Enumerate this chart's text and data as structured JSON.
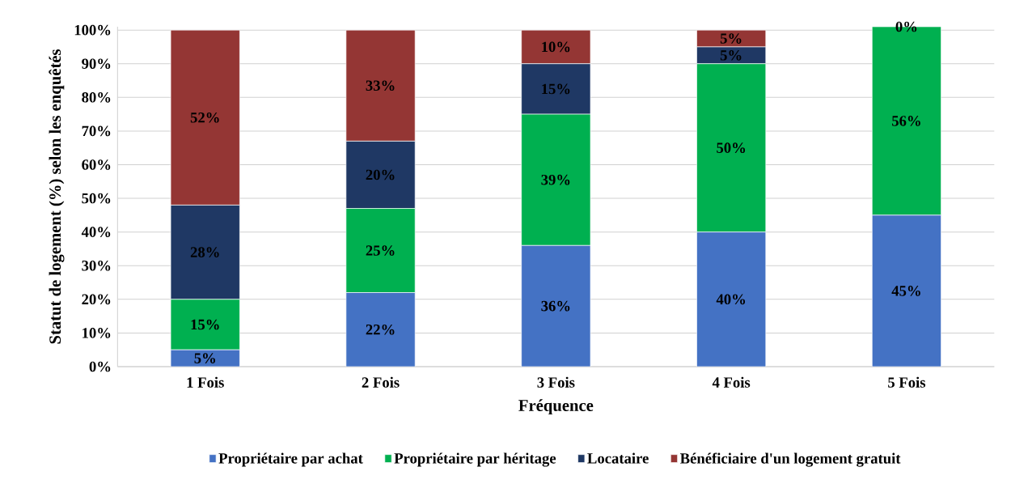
{
  "chart_data": {
    "type": "bar",
    "stacked": true,
    "xlabel": "Fréquence",
    "ylabel": "Statut de logement (%) selon les enquêtés",
    "categories": [
      "1 Fois",
      "2 Fois",
      "3 Fois",
      "4 Fois",
      "5 Fois"
    ],
    "series": [
      {
        "name": "Propriétaire par achat",
        "color": "#4472c4",
        "values": [
          5,
          22,
          36,
          40,
          45
        ],
        "value_labels": [
          "5%",
          "22%",
          "36%",
          "40%",
          "45%"
        ]
      },
      {
        "name": "Propriétaire par héritage",
        "color": "#00b050",
        "values": [
          15,
          25,
          39,
          50,
          56
        ],
        "value_labels": [
          "15%",
          "25%",
          "39%",
          "50%",
          "56%"
        ]
      },
      {
        "name": "Locataire",
        "color": "#1f3864",
        "values": [
          28,
          20,
          15,
          5,
          0
        ],
        "value_labels": [
          "28%",
          "20%",
          "15%",
          "5%",
          null
        ]
      },
      {
        "name": "Bénéficiaire d'un logement gratuit",
        "color": "#943634",
        "values": [
          52,
          33,
          10,
          5,
          0
        ],
        "value_labels": [
          "52%",
          "33%",
          "10%",
          "5%",
          "0%"
        ]
      }
    ],
    "ylim": [
      0,
      101
    ],
    "yticks": [
      {
        "value": 0,
        "label": "0%"
      },
      {
        "value": 10,
        "label": "10%"
      },
      {
        "value": 20,
        "label": "20%"
      },
      {
        "value": 30,
        "label": "30%"
      },
      {
        "value": 40,
        "label": "40%"
      },
      {
        "value": 50,
        "label": "50%"
      },
      {
        "value": 60,
        "label": "60%"
      },
      {
        "value": 70,
        "label": "70%"
      },
      {
        "value": 80,
        "label": "80%"
      },
      {
        "value": 90,
        "label": "90%"
      },
      {
        "value": 100,
        "label": "100%"
      }
    ],
    "grid": "y",
    "legend": "bottom"
  }
}
